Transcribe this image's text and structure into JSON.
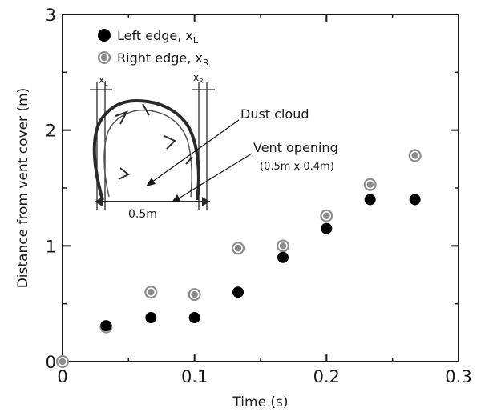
{
  "chart_data": {
    "type": "scatter",
    "title": "",
    "xlabel": "Time (s)",
    "ylabel": "Distance from vent cover (m)",
    "xlim": [
      0,
      0.3
    ],
    "ylim": [
      0,
      3
    ],
    "xticks": [
      0,
      0.1,
      0.2,
      0.3
    ],
    "xtick_labels": [
      "0",
      "0.1",
      "0.2",
      "0.3"
    ],
    "yticks": [
      0,
      1,
      2,
      3
    ],
    "ytick_labels": [
      "0",
      "1",
      "2",
      "3"
    ],
    "grid": false,
    "legend_position": "top-left",
    "series": [
      {
        "name": "Left edge, x",
        "name_subscript": "L",
        "marker": "filled-circle",
        "color": "#000000",
        "points": [
          {
            "x": 0,
            "y": 0
          },
          {
            "x": 0.033,
            "y": 0.31
          },
          {
            "x": 0.067,
            "y": 0.38
          },
          {
            "x": 0.1,
            "y": 0.38
          },
          {
            "x": 0.133,
            "y": 0.6
          },
          {
            "x": 0.167,
            "y": 0.9
          },
          {
            "x": 0.2,
            "y": 1.15
          },
          {
            "x": 0.233,
            "y": 1.4
          },
          {
            "x": 0.267,
            "y": 1.4
          }
        ]
      },
      {
        "name": "Right edge, x",
        "name_subscript": "R",
        "marker": "double-ring-circle",
        "color": "#8c8c8c",
        "points": [
          {
            "x": 0,
            "y": 0
          },
          {
            "x": 0.033,
            "y": 0.3
          },
          {
            "x": 0.067,
            "y": 0.6
          },
          {
            "x": 0.1,
            "y": 0.58
          },
          {
            "x": 0.133,
            "y": 0.98
          },
          {
            "x": 0.167,
            "y": 1.0
          },
          {
            "x": 0.2,
            "y": 1.26
          },
          {
            "x": 0.233,
            "y": 1.53
          },
          {
            "x": 0.267,
            "y": 1.78
          }
        ]
      }
    ],
    "annotations": [
      {
        "id": "dust",
        "text": "Dust cloud"
      },
      {
        "id": "vent",
        "text": "Vent opening",
        "subtext": "(0.5m x 0.4m)"
      }
    ],
    "inset": {
      "description_labels": {
        "left_edge": "x",
        "left_edge_sub": "L",
        "right_edge": "x",
        "right_edge_sub": "R",
        "width": "0.5m"
      }
    }
  },
  "colors": {
    "axis": "#1a1a1a",
    "filled_marker": "#000000",
    "ring_marker": "#8c8c8c",
    "ring_inner": "#ffffff",
    "inset_stroke": "#2a2a2a"
  }
}
